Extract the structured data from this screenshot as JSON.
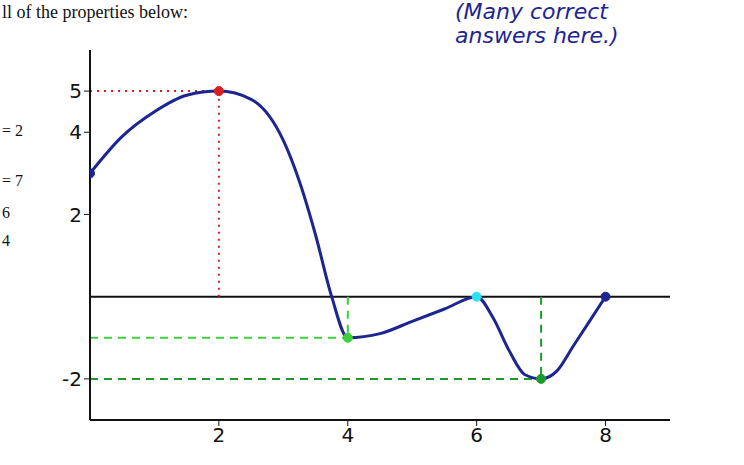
{
  "chart_data": {
    "type": "line",
    "title": "ll of the properties below:",
    "annotations": [
      "(Many correct answers here.)",
      "= 2",
      "= 7",
      "6",
      "4"
    ],
    "x": [
      0,
      0.5,
      1,
      1.5,
      2,
      2.5,
      3,
      3.25,
      3.5,
      3.75,
      4,
      4.5,
      5,
      5.5,
      6,
      6.25,
      6.5,
      6.75,
      7,
      7.25,
      7.5,
      7.75,
      8
    ],
    "values": [
      3,
      3.9,
      4.5,
      4.9,
      5,
      4.8,
      3.8,
      2.8,
      1.5,
      0,
      -1,
      -0.9,
      -0.6,
      -0.3,
      0,
      -0.5,
      -1.3,
      -1.9,
      -2,
      -1.8,
      -1.2,
      -0.6,
      0
    ],
    "color": "#1c2590",
    "xlim": [
      0,
      9
    ],
    "ylim": [
      -3,
      6
    ],
    "xticks": [
      2,
      4,
      6,
      8
    ],
    "yticks": [
      -2,
      2,
      4,
      5
    ],
    "grid": false,
    "points": [
      {
        "x": 0,
        "y": 3,
        "color": "#1c2590"
      },
      {
        "x": 2,
        "y": 5,
        "color": "#d81e1e"
      },
      {
        "x": 4,
        "y": -1,
        "color": "#3ecf3e"
      },
      {
        "x": 6,
        "y": 0,
        "color": "#2ee0f0"
      },
      {
        "x": 7,
        "y": -2,
        "color": "#1f9a2a"
      },
      {
        "x": 8,
        "y": 0,
        "color": "#1c2590"
      }
    ],
    "guides": [
      {
        "x": 2,
        "y": 5,
        "color": "#d81e1e",
        "line_style": "dotted"
      },
      {
        "x": 4,
        "y": -1,
        "color": "#3ecf3e",
        "line_style": "dashed"
      },
      {
        "x": 7,
        "y": -2,
        "color": "#1f9a2a",
        "line_style": "dashed"
      }
    ]
  }
}
